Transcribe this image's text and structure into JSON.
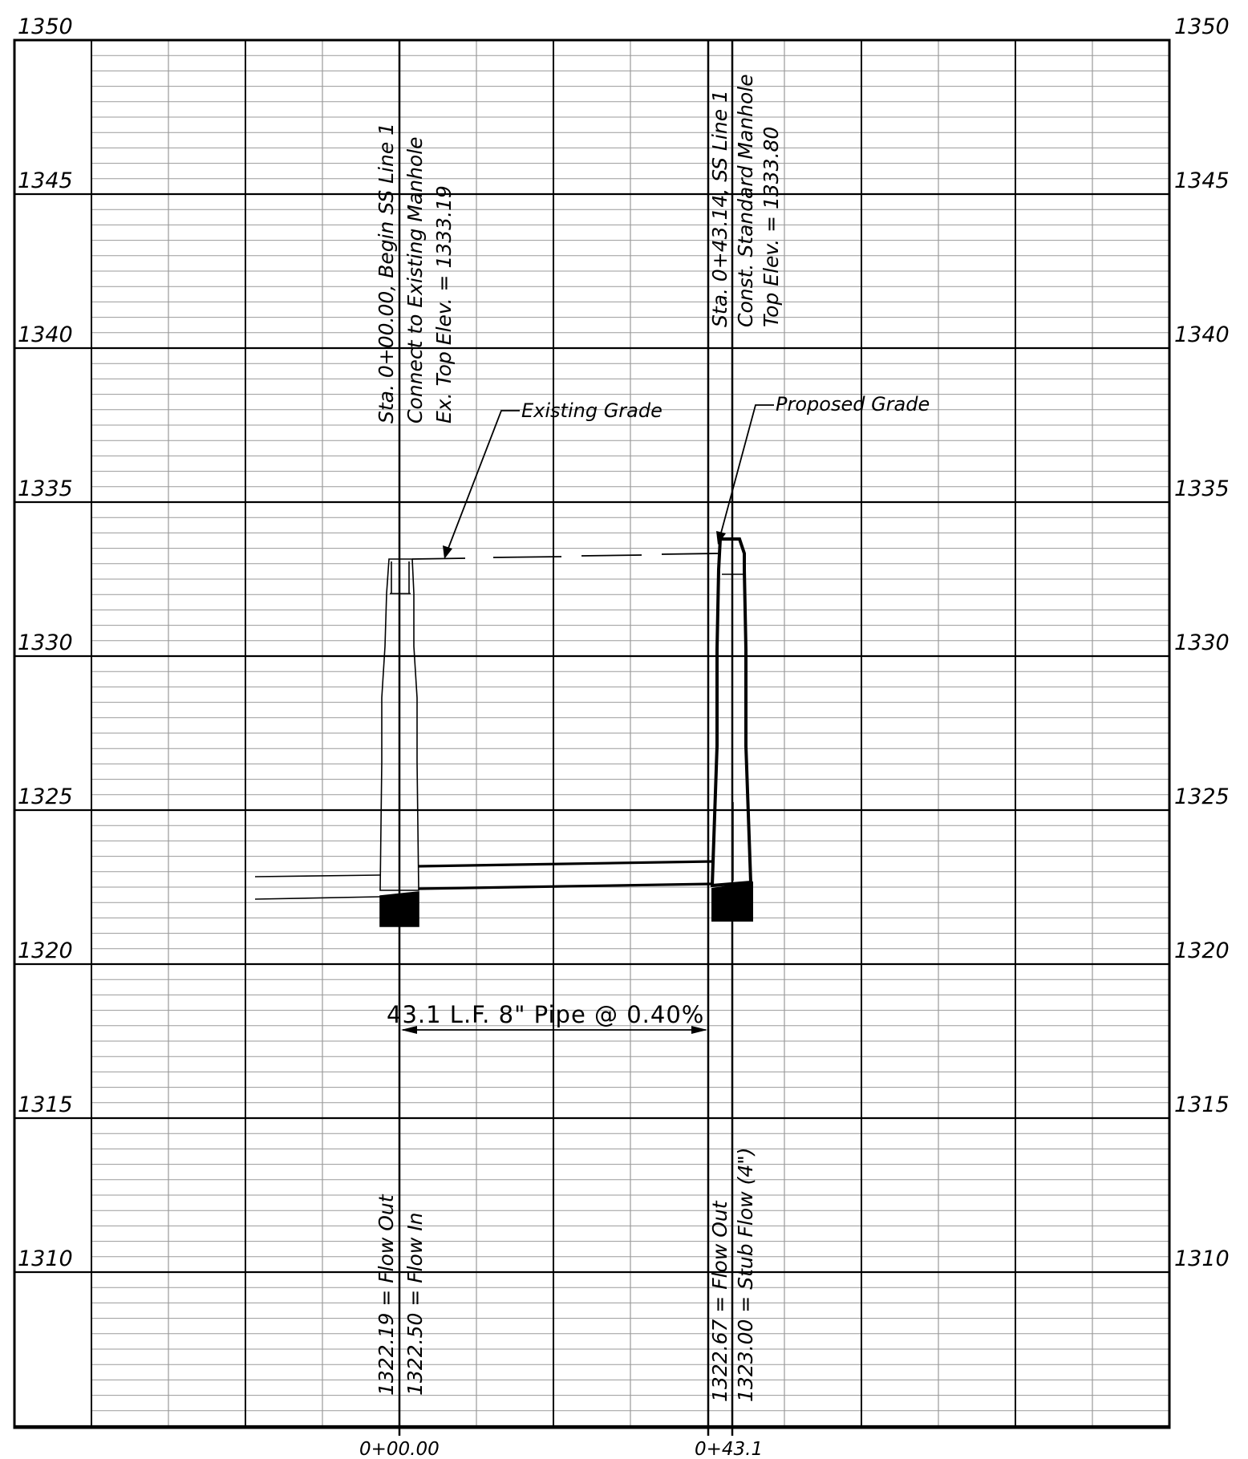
{
  "elevations": {
    "left": [
      "1350",
      "1345",
      "1340",
      "1335",
      "1330",
      "1325",
      "1320",
      "1315",
      "1310"
    ],
    "right": [
      "1350",
      "1345",
      "1340",
      "1335",
      "1330",
      "1325",
      "1320",
      "1315",
      "1310"
    ]
  },
  "stations": {
    "start": "0+00.00",
    "end": "0+43.1"
  },
  "start_manhole": {
    "notes": [
      "Sta. 0+00.00, Begin SS Line 1",
      "Connect to Existing Manhole",
      "Ex. Top Elev. = 1333.19"
    ],
    "inverts": [
      "1322.19 = Flow Out",
      "1322.50 = Flow In"
    ]
  },
  "end_manhole": {
    "notes": [
      "Sta. 0+43.14, SS Line 1",
      "Const. Standard Manhole",
      "Top Elev. = 1333.80"
    ],
    "inverts": [
      "1322.67 = Flow Out",
      "1323.00 = Stub Flow (4\")"
    ]
  },
  "callouts": {
    "existing_grade": "Existing Grade",
    "proposed_grade": "Proposed Grade"
  },
  "pipe": {
    "label": "43.1 L.F. 8\" Pipe @ 0.40%"
  }
}
